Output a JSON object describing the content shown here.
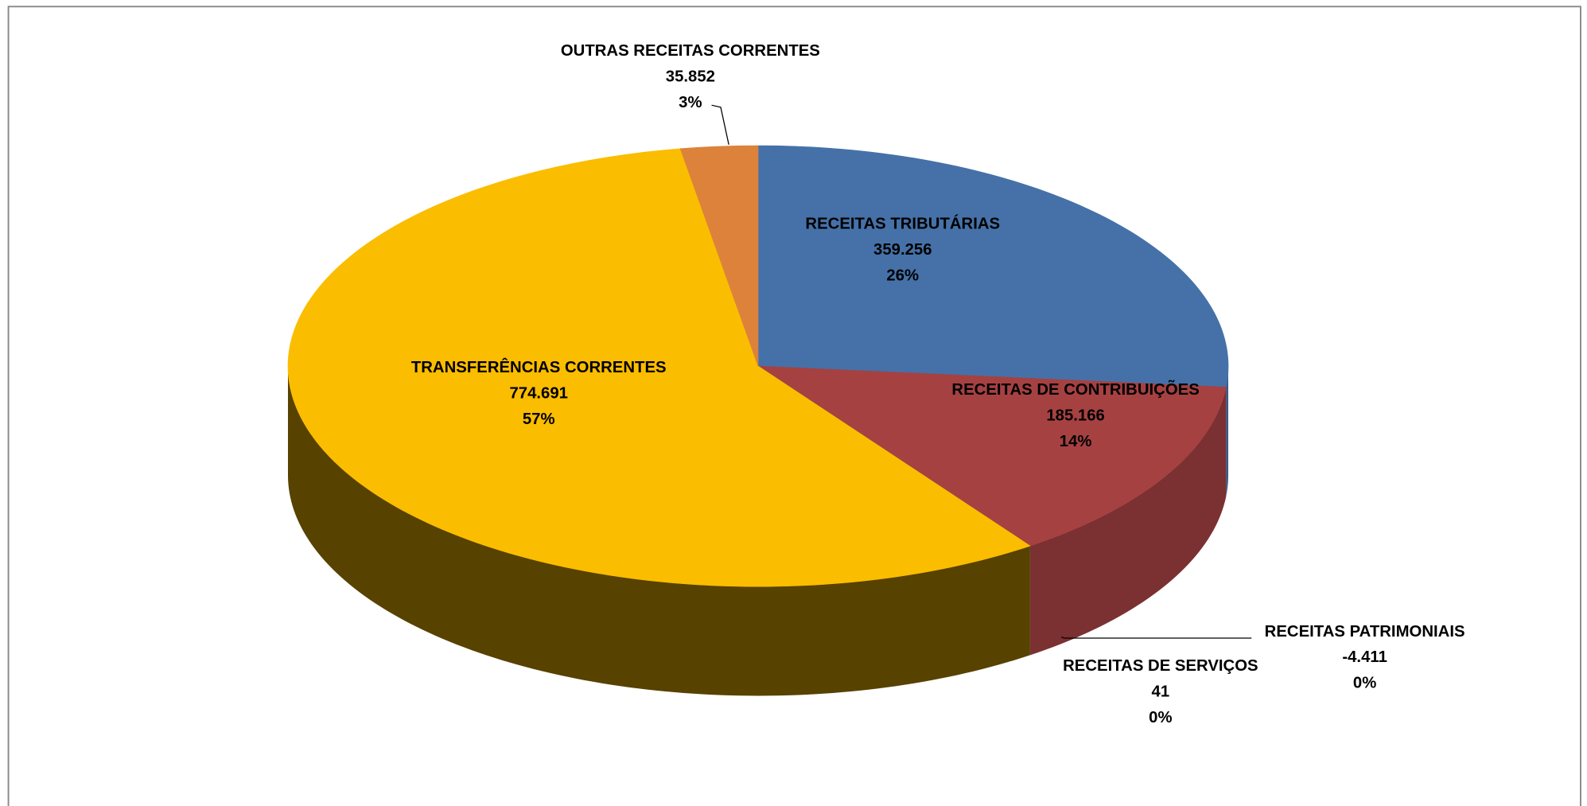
{
  "chart_data": {
    "type": "pie3d",
    "categories": [
      "RECEITAS TRIBUTÁRIAS",
      "RECEITAS DE CONTRIBUIÇÕES",
      "RECEITAS DE SERVIÇOS",
      "RECEITAS PATRIMONIAIS",
      "TRANSFERÊNCIAS CORRENTES",
      "OUTRAS RECEITAS CORRENTES"
    ],
    "values": [
      359256,
      185166,
      41,
      -4411,
      774691,
      35852
    ],
    "value_labels": [
      "359.256",
      "185.166",
      "41",
      "-4.411",
      "774.691",
      "35.852"
    ],
    "percents": [
      26,
      14,
      0,
      0,
      57,
      3
    ],
    "percent_labels": [
      "26%",
      "14%",
      "0%",
      "0%",
      "57%",
      "3%"
    ],
    "colors": [
      "#4571a8",
      "#a64142",
      "#8eb04d",
      "#6b8a3a",
      "#fbbd00",
      "#dc823b"
    ]
  }
}
